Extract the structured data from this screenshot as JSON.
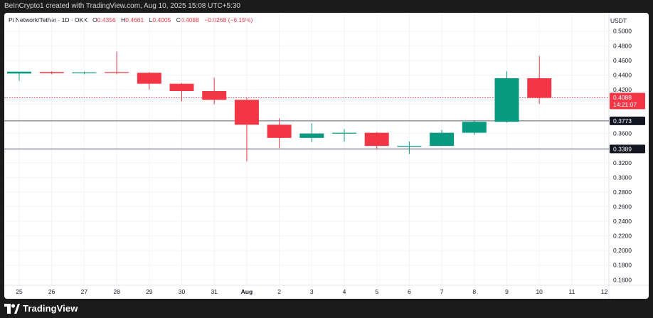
{
  "header": {
    "credit": "BeInCrypto1 created with TradingView.com, Aug 10, 2025 15:08 UTC+5:30"
  },
  "legend": {
    "symbol": "Pi Network/Tether · 1D · OKX",
    "o_label": "O",
    "o": "0.4356",
    "h_label": "H",
    "h": "0.4661",
    "l_label": "L",
    "l": "0.4005",
    "c_label": "C",
    "c": "0.4088",
    "change": "−0.0268 (−6.15%)"
  },
  "currency": "USDT",
  "footer": {
    "brand": "TradingView"
  },
  "colors": {
    "up": "#089981",
    "down": "#f23645",
    "grid": "#f0f3fa",
    "axis_text": "#131722",
    "hline": "#5d606b"
  },
  "chart_data": {
    "type": "candlestick",
    "x_labels": [
      "25",
      "26",
      "27",
      "28",
      "29",
      "30",
      "31",
      "Aug",
      "2",
      "3",
      "4",
      "5",
      "6",
      "7",
      "8",
      "9",
      "10",
      "11",
      "12"
    ],
    "candles": [
      {
        "label": "25",
        "open": 0.442,
        "high": 0.4445,
        "low": 0.432,
        "close": 0.4445
      },
      {
        "label": "26",
        "open": 0.444,
        "high": 0.445,
        "low": 0.441,
        "close": 0.4425
      },
      {
        "label": "27",
        "open": 0.4425,
        "high": 0.4445,
        "low": 0.441,
        "close": 0.4435
      },
      {
        "label": "28",
        "open": 0.444,
        "high": 0.472,
        "low": 0.441,
        "close": 0.443
      },
      {
        "label": "29",
        "open": 0.443,
        "high": 0.444,
        "low": 0.42,
        "close": 0.428
      },
      {
        "label": "30",
        "open": 0.428,
        "high": 0.429,
        "low": 0.404,
        "close": 0.418
      },
      {
        "label": "31",
        "open": 0.418,
        "high": 0.436,
        "low": 0.4,
        "close": 0.406
      },
      {
        "label": "Aug",
        "open": 0.406,
        "high": 0.409,
        "low": 0.322,
        "close": 0.372
      },
      {
        "label": "2",
        "open": 0.372,
        "high": 0.381,
        "low": 0.34,
        "close": 0.354
      },
      {
        "label": "3",
        "open": 0.354,
        "high": 0.374,
        "low": 0.348,
        "close": 0.36
      },
      {
        "label": "4",
        "open": 0.36,
        "high": 0.366,
        "low": 0.349,
        "close": 0.361
      },
      {
        "label": "5",
        "open": 0.361,
        "high": 0.362,
        "low": 0.339,
        "close": 0.343
      },
      {
        "label": "6",
        "open": 0.342,
        "high": 0.349,
        "low": 0.332,
        "close": 0.343
      },
      {
        "label": "7",
        "open": 0.343,
        "high": 0.365,
        "low": 0.343,
        "close": 0.361
      },
      {
        "label": "8",
        "open": 0.361,
        "high": 0.378,
        "low": 0.358,
        "close": 0.376
      },
      {
        "label": "9",
        "open": 0.376,
        "high": 0.445,
        "low": 0.375,
        "close": 0.4356
      },
      {
        "label": "10",
        "open": 0.4356,
        "high": 0.4661,
        "low": 0.4005,
        "close": 0.4088
      }
    ],
    "y_ticks": [
      "0.5000",
      "0.4800",
      "0.4600",
      "0.4400",
      "0.4200",
      "0.4000",
      "0.3800",
      "0.3600",
      "0.3400",
      "0.3200",
      "0.3000",
      "0.2800",
      "0.2600",
      "0.2400",
      "0.2200",
      "0.2000",
      "0.1800",
      "0.1600"
    ],
    "ylim": [
      0.1525,
      0.5075
    ],
    "horizontal_lines": [
      {
        "value": 0.3773,
        "label": "0.3773"
      },
      {
        "value": 0.3389,
        "label": "0.3389"
      }
    ],
    "last_price": {
      "value": 0.4088,
      "label": "0.4088",
      "countdown": "14:21:07"
    },
    "grid": true
  }
}
